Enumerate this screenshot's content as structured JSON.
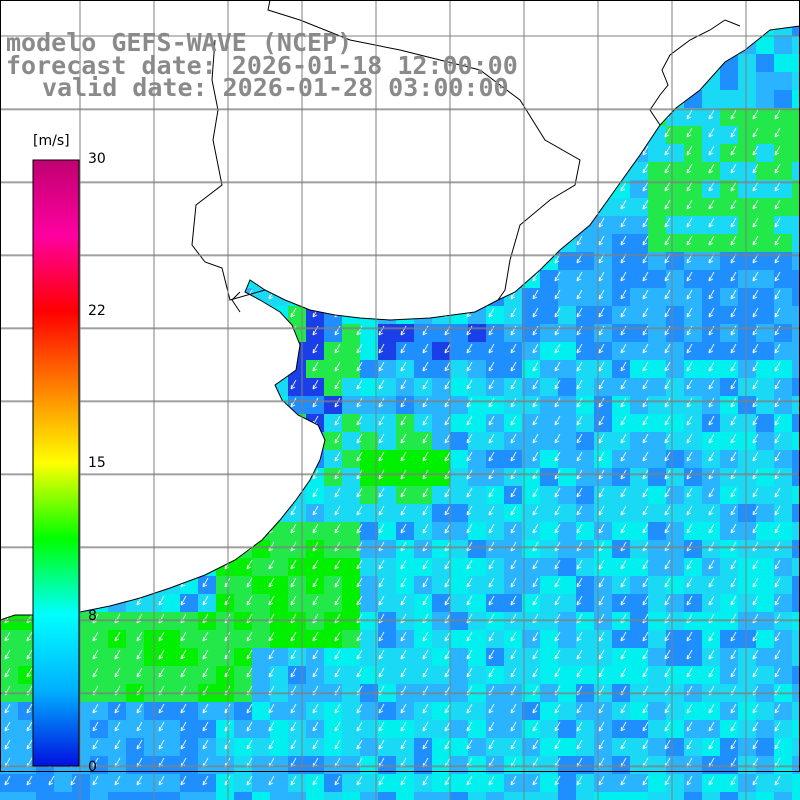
{
  "title": {
    "model": "modelo GEFS-WAVE (NCEP)",
    "forecast": "forecast date: 2026-01-18 12:00:00",
    "valid": "valid date: 2026-01-28 03:00:00"
  },
  "colorbar": {
    "unit": "[m/s]",
    "ticks": [
      "30",
      "22",
      "15",
      "8",
      "0"
    ],
    "colors": [
      "#0010e0",
      "#00b0ff",
      "#00ffff",
      "#00ff00",
      "#ffff00",
      "#ff8000",
      "#ff0000",
      "#ff00a0",
      "#c00070"
    ]
  },
  "colors": {
    "land": "#ffffff",
    "coast": "#000000",
    "grid": "#7f7f7f",
    "arrow": "#ffffff",
    "deep_blue": "#1a3fe8",
    "blue": "#1f8fff",
    "light_blue": "#2ab4ff",
    "cyan": "#19d9f5",
    "aqua": "#00f0f0",
    "green": "#22e84a",
    "bright_green": "#00f000"
  }
}
